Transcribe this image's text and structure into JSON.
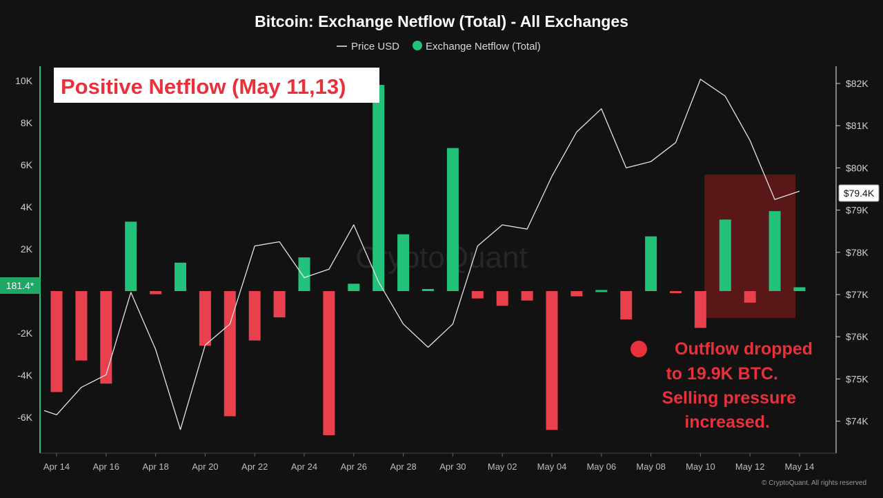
{
  "chart_data": {
    "type": "bar",
    "title": "Bitcoin: Exchange Netflow (Total) - All Exchanges",
    "legend": [
      {
        "label": "Price USD",
        "color": "#ffffff",
        "marker": "line"
      },
      {
        "label": "Exchange Netflow (Total)",
        "color": "#22c27a",
        "marker": "dot"
      }
    ],
    "legend_position": "top-center",
    "x_tick_labels": [
      "Apr 14",
      "Apr 16",
      "Apr 18",
      "Apr 20",
      "Apr 22",
      "Apr 24",
      "Apr 26",
      "Apr 28",
      "Apr 30",
      "May 02",
      "May 04",
      "May 06",
      "May 08",
      "May 10",
      "May 12",
      "May 14"
    ],
    "left_axis": {
      "ticks": [
        -6000,
        -4000,
        -2000,
        0,
        2000,
        4000,
        6000,
        8000,
        10000
      ],
      "tick_labels": [
        "-6K",
        "-4K",
        "-2K",
        "",
        "2K",
        "4K",
        "6K",
        "8K",
        "10K"
      ],
      "range": [
        -7500,
        10500
      ]
    },
    "right_axis": {
      "ticks": [
        74000,
        75000,
        76000,
        77000,
        78000,
        79000,
        80000,
        81000,
        82000
      ],
      "tick_labels": [
        "$74K",
        "$75K",
        "$76K",
        "$77K",
        "$78K",
        "$79K",
        "$80K",
        "$81K",
        "$82K"
      ],
      "range": [
        73600,
        82800
      ]
    },
    "series": [
      {
        "name": "Exchange Netflow (Total)",
        "kind": "bar",
        "positive_color": "#22c27a",
        "negative_color": "#e8404c",
        "dates": [
          "Apr 14",
          "Apr 15",
          "Apr 16",
          "Apr 17",
          "Apr 18",
          "Apr 19",
          "Apr 20",
          "Apr 21",
          "Apr 22",
          "Apr 23",
          "Apr 24",
          "Apr 25",
          "Apr 26",
          "Apr 27",
          "Apr 28",
          "Apr 29",
          "Apr 30",
          "May 01",
          "May 02",
          "May 03",
          "May 04",
          "May 05",
          "May 06",
          "May 07",
          "May 08",
          "May 09",
          "May 10",
          "May 11",
          "May 12",
          "May 13",
          "May 14"
        ],
        "values": [
          -4800,
          -3300,
          -4400,
          3300,
          -150,
          1350,
          -2600,
          -5950,
          -2350,
          -1250,
          1600,
          -6850,
          350,
          9800,
          2700,
          100,
          6800,
          -350,
          -700,
          -450,
          -6600,
          -250,
          50,
          -1350,
          2600,
          -50,
          -1750,
          3400,
          -550,
          3800,
          181.4
        ]
      },
      {
        "name": "Price USD",
        "kind": "line",
        "color": "#ffffff",
        "x_day": [
          -0.5,
          0,
          1,
          2,
          3,
          4,
          5,
          6,
          7,
          8,
          9,
          10,
          11,
          12,
          13,
          14,
          15,
          16,
          17,
          18,
          19,
          20,
          21,
          22,
          23,
          24,
          25,
          26,
          27,
          28,
          29,
          30
        ],
        "values": [
          74250,
          74150,
          74800,
          75100,
          77050,
          75700,
          73800,
          75800,
          76300,
          78150,
          78250,
          77400,
          77600,
          78650,
          77300,
          76300,
          75750,
          76300,
          78150,
          78650,
          78550,
          79800,
          80850,
          81400,
          80000,
          80150,
          80600,
          82100,
          81700,
          80650,
          79250,
          79450
        ]
      }
    ],
    "annotations": {
      "box_label": "Positive Netflow (May 11,13)",
      "outflow_note_lines": [
        "Outflow dropped",
        "to 19.9K BTC.",
        "Selling pressure",
        "increased."
      ],
      "highlight_region": {
        "from": "May 11",
        "to": "May 13"
      }
    },
    "badges": {
      "current_price": "$79.4K",
      "current_netflow": "181.4*"
    },
    "watermark": "CryptoQuant",
    "copyright": "© CryptoQuant. All rights reserved",
    "grid": false
  }
}
